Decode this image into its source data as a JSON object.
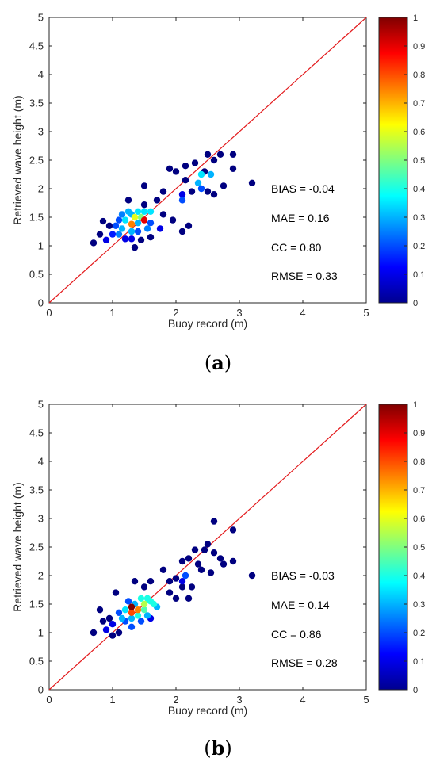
{
  "chart_data": [
    {
      "type": "scatter",
      "panel_label": "a",
      "xlabel": "Buoy record (m)",
      "ylabel": "Retrieved wave height (m)",
      "xlim": [
        0,
        5
      ],
      "ylim": [
        0,
        5
      ],
      "x_ticks": [
        "0",
        "1",
        "2",
        "3",
        "4",
        "5"
      ],
      "y_ticks": [
        "0",
        "0.5",
        "1",
        "1.5",
        "2",
        "2.5",
        "3",
        "3.5",
        "4",
        "4.5",
        "5"
      ],
      "reference_line": {
        "from": [
          0,
          0
        ],
        "to": [
          5,
          5
        ],
        "color": "#e31a1c"
      },
      "colorbar": {
        "min": 0,
        "max": 1,
        "ticks": [
          "0",
          "0.1",
          "0.2",
          "0.3",
          "0.4",
          "0.5",
          "0.6",
          "0.7",
          "0.8",
          "0.9",
          "1"
        ],
        "colormap": "jet"
      },
      "stats": [
        "BIAS = -0.04",
        "MAE = 0.16",
        "CC = 0.80",
        "RMSE = 0.33"
      ],
      "points": [
        [
          0.7,
          1.05,
          0.0
        ],
        [
          0.8,
          1.2,
          0.0
        ],
        [
          0.85,
          1.43,
          0.0
        ],
        [
          0.9,
          1.1,
          0.1
        ],
        [
          0.95,
          1.35,
          0.0
        ],
        [
          1.0,
          1.2,
          0.15
        ],
        [
          1.05,
          1.35,
          0.2
        ],
        [
          1.1,
          1.45,
          0.2
        ],
        [
          1.1,
          1.2,
          0.25
        ],
        [
          1.15,
          1.55,
          0.25
        ],
        [
          1.15,
          1.3,
          0.3
        ],
        [
          1.2,
          1.45,
          0.35
        ],
        [
          1.2,
          1.12,
          0.1
        ],
        [
          1.25,
          1.6,
          0.3
        ],
        [
          1.25,
          1.8,
          0.0
        ],
        [
          1.3,
          1.55,
          0.3
        ],
        [
          1.3,
          1.38,
          0.75
        ],
        [
          1.3,
          1.25,
          0.3
        ],
        [
          1.3,
          1.12,
          0.1
        ],
        [
          1.35,
          1.5,
          0.6
        ],
        [
          1.35,
          0.97,
          0.0
        ],
        [
          1.4,
          1.6,
          0.35
        ],
        [
          1.4,
          1.4,
          0.3
        ],
        [
          1.4,
          1.25,
          0.2
        ],
        [
          1.45,
          1.5,
          0.5
        ],
        [
          1.5,
          1.45,
          0.9
        ],
        [
          1.5,
          1.6,
          0.35
        ],
        [
          1.55,
          1.3,
          0.25
        ],
        [
          1.6,
          1.6,
          0.35
        ],
        [
          1.6,
          1.4,
          0.2
        ],
        [
          1.6,
          1.15,
          0.0
        ],
        [
          1.45,
          1.1,
          0.0
        ],
        [
          1.5,
          1.72,
          0.0
        ],
        [
          1.7,
          1.8,
          0.0
        ],
        [
          1.75,
          1.3,
          0.1
        ],
        [
          1.8,
          1.95,
          0.0
        ],
        [
          1.8,
          1.55,
          0.0
        ],
        [
          1.5,
          2.05,
          0.0
        ],
        [
          1.9,
          2.35,
          0.0
        ],
        [
          1.95,
          1.45,
          0.0
        ],
        [
          2.0,
          2.3,
          0.0
        ],
        [
          2.1,
          1.9,
          0.1
        ],
        [
          2.1,
          1.8,
          0.2
        ],
        [
          2.1,
          1.25,
          0.0
        ],
        [
          2.15,
          2.15,
          0.0
        ],
        [
          2.15,
          2.4,
          0.0
        ],
        [
          2.2,
          1.35,
          0.0
        ],
        [
          2.25,
          1.95,
          0.0
        ],
        [
          2.3,
          2.45,
          0.0
        ],
        [
          2.35,
          2.1,
          0.3
        ],
        [
          2.4,
          2.25,
          0.35
        ],
        [
          2.4,
          2.0,
          0.2
        ],
        [
          2.45,
          2.3,
          0.0
        ],
        [
          2.5,
          2.6,
          0.0
        ],
        [
          2.5,
          1.95,
          0.0
        ],
        [
          2.55,
          2.25,
          0.3
        ],
        [
          2.6,
          2.5,
          0.0
        ],
        [
          2.6,
          1.9,
          0.0
        ],
        [
          2.7,
          2.6,
          0.0
        ],
        [
          2.75,
          2.05,
          0.0
        ],
        [
          2.9,
          2.6,
          0.0
        ],
        [
          2.9,
          2.35,
          0.0
        ],
        [
          3.2,
          2.1,
          0.0
        ]
      ]
    },
    {
      "type": "scatter",
      "panel_label": "b",
      "xlabel": "Buoy record (m)",
      "ylabel": "Retrieved wave height (m)",
      "xlim": [
        0,
        5
      ],
      "ylim": [
        0,
        5
      ],
      "x_ticks": [
        "0",
        "1",
        "2",
        "3",
        "4",
        "5"
      ],
      "y_ticks": [
        "0",
        "0.5",
        "1",
        "1.5",
        "2",
        "2.5",
        "3",
        "3.5",
        "4",
        "4.5",
        "5"
      ],
      "reference_line": {
        "from": [
          0,
          0
        ],
        "to": [
          5,
          5
        ],
        "color": "#e31a1c"
      },
      "colorbar": {
        "min": 0,
        "max": 1,
        "ticks": [
          "0",
          "0.1",
          "0.2",
          "0.3",
          "0.4",
          "0.5",
          "0.6",
          "0.7",
          "0.8",
          "0.9",
          "1"
        ],
        "colormap": "jet"
      },
      "stats": [
        "BIAS = -0.03",
        "MAE = 0.14",
        "CC = 0.86",
        "RMSE = 0.28"
      ],
      "points": [
        [
          0.7,
          1.0,
          0.0
        ],
        [
          0.8,
          1.4,
          0.0
        ],
        [
          0.85,
          1.2,
          0.0
        ],
        [
          0.9,
          1.05,
          0.1
        ],
        [
          0.95,
          1.25,
          0.0
        ],
        [
          1.0,
          0.95,
          0.0
        ],
        [
          1.0,
          1.15,
          0.1
        ],
        [
          1.05,
          1.7,
          0.0
        ],
        [
          1.1,
          1.35,
          0.2
        ],
        [
          1.1,
          1.0,
          0.0
        ],
        [
          1.15,
          1.25,
          0.3
        ],
        [
          1.2,
          1.4,
          0.35
        ],
        [
          1.2,
          1.2,
          0.2
        ],
        [
          1.25,
          1.55,
          0.2
        ],
        [
          1.3,
          1.45,
          1.0
        ],
        [
          1.3,
          1.35,
          0.8
        ],
        [
          1.3,
          1.25,
          0.3
        ],
        [
          1.3,
          1.1,
          0.2
        ],
        [
          1.35,
          1.5,
          0.3
        ],
        [
          1.35,
          1.9,
          0.0
        ],
        [
          1.4,
          1.4,
          0.75
        ],
        [
          1.4,
          1.3,
          0.4
        ],
        [
          1.45,
          1.6,
          0.4
        ],
        [
          1.45,
          1.2,
          0.2
        ],
        [
          1.5,
          1.5,
          0.55
        ],
        [
          1.5,
          1.4,
          0.45
        ],
        [
          1.5,
          1.8,
          0.0
        ],
        [
          1.55,
          1.6,
          0.4
        ],
        [
          1.55,
          1.3,
          0.3
        ],
        [
          1.6,
          1.55,
          0.4
        ],
        [
          1.6,
          1.9,
          0.0
        ],
        [
          1.65,
          1.5,
          0.4
        ],
        [
          1.7,
          1.45,
          0.3
        ],
        [
          1.6,
          1.25,
          0.1
        ],
        [
          1.8,
          2.1,
          0.0
        ],
        [
          1.9,
          1.9,
          0.0
        ],
        [
          1.9,
          1.7,
          0.0
        ],
        [
          2.0,
          1.95,
          0.0
        ],
        [
          2.0,
          1.6,
          0.0
        ],
        [
          2.1,
          2.25,
          0.0
        ],
        [
          2.1,
          1.9,
          0.1
        ],
        [
          2.1,
          1.8,
          0.0
        ],
        [
          2.15,
          2.0,
          0.2
        ],
        [
          2.2,
          2.3,
          0.0
        ],
        [
          2.2,
          1.6,
          0.0
        ],
        [
          2.25,
          1.8,
          0.0
        ],
        [
          2.3,
          2.45,
          0.0
        ],
        [
          2.35,
          2.2,
          0.0
        ],
        [
          2.4,
          2.1,
          0.0
        ],
        [
          2.45,
          2.45,
          0.0
        ],
        [
          2.5,
          2.55,
          0.0
        ],
        [
          2.55,
          2.05,
          0.0
        ],
        [
          2.6,
          2.95,
          0.0
        ],
        [
          2.6,
          2.4,
          0.0
        ],
        [
          2.7,
          2.3,
          0.0
        ],
        [
          2.75,
          2.2,
          0.0
        ],
        [
          2.9,
          2.8,
          0.0
        ],
        [
          2.9,
          2.25,
          0.0
        ],
        [
          3.2,
          2.0,
          0.0
        ]
      ]
    }
  ]
}
